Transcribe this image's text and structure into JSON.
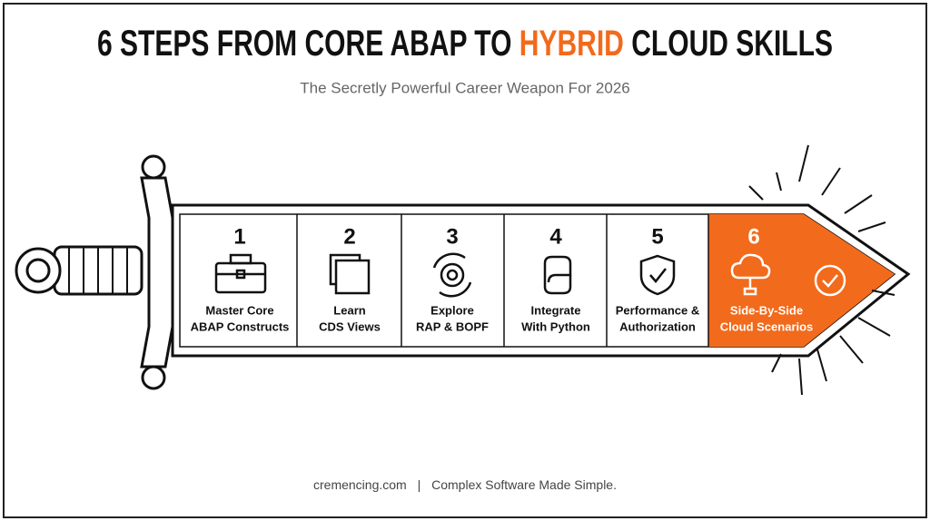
{
  "header": {
    "title_start": "6 STEPS FROM CORE ABAP TO",
    "title_highlight": "HYBRID",
    "title_end": "CLOUD SKILLS",
    "subtitle": "The Secretly Powerful Career Weapon For 2026"
  },
  "steps": [
    {
      "number": "1",
      "lines": [
        "Master Core",
        "ABAP Constructs"
      ]
    },
    {
      "number": "2",
      "lines": [
        "Learn",
        "CDS Views"
      ]
    },
    {
      "number": "3",
      "lines": [
        "Explore",
        "RAP & BOPF"
      ]
    },
    {
      "number": "4",
      "lines": [
        "Integrate",
        "With Python"
      ]
    },
    {
      "number": "5",
      "lines": [
        "Performance &",
        "Authorization"
      ]
    },
    {
      "number": "6",
      "lines": [
        "Side-By-Side",
        "Cloud Scenarios"
      ]
    }
  ],
  "footer": {
    "site": "cremencing.com",
    "separator": "|",
    "tagline": "Complex Software Made Simple."
  }
}
